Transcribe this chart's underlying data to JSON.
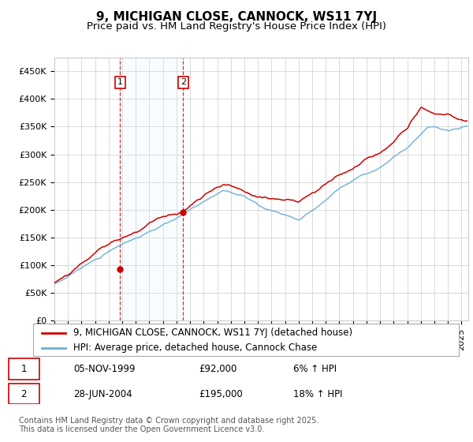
{
  "title": "9, MICHIGAN CLOSE, CANNOCK, WS11 7YJ",
  "subtitle": "Price paid vs. HM Land Registry's House Price Index (HPI)",
  "ylabel_ticks": [
    "£0",
    "£50K",
    "£100K",
    "£150K",
    "£200K",
    "£250K",
    "£300K",
    "£350K",
    "£400K",
    "£450K"
  ],
  "ytick_values": [
    0,
    50000,
    100000,
    150000,
    200000,
    250000,
    300000,
    350000,
    400000,
    450000
  ],
  "ylim": [
    0,
    475000
  ],
  "xlim_start": 1995.0,
  "xlim_end": 2025.5,
  "sale1_date": 1999.84,
  "sale1_price": 92000,
  "sale1_label": "1",
  "sale2_date": 2004.49,
  "sale2_price": 195000,
  "sale2_label": "2",
  "hpi_color": "#6baed6",
  "price_color": "#cc0000",
  "sale_marker_color": "#cc0000",
  "vline_color": "#cc0000",
  "shade_color": "#ddeeff",
  "legend_label_price": "9, MICHIGAN CLOSE, CANNOCK, WS11 7YJ (detached house)",
  "legend_label_hpi": "HPI: Average price, detached house, Cannock Chase",
  "table_row1": [
    "1",
    "05-NOV-1999",
    "£92,000",
    "6% ↑ HPI"
  ],
  "table_row2": [
    "2",
    "28-JUN-2004",
    "£195,000",
    "18% ↑ HPI"
  ],
  "footnote": "Contains HM Land Registry data © Crown copyright and database right 2025.\nThis data is licensed under the Open Government Licence v3.0.",
  "background_color": "#ffffff",
  "grid_color": "#cccccc",
  "title_fontsize": 11,
  "subtitle_fontsize": 9.5,
  "tick_fontsize": 8,
  "legend_fontsize": 8.5,
  "table_fontsize": 8.5,
  "footnote_fontsize": 7
}
